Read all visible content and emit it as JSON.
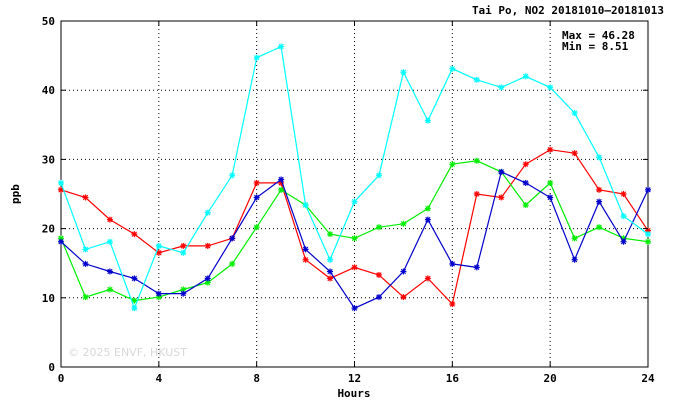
{
  "chart_data": {
    "type": "line",
    "title": "Tai Po, NO2 20181010—20181013",
    "xlabel": "Hours",
    "ylabel": "ppb",
    "xlim": [
      0,
      24
    ],
    "ylim": [
      0,
      50
    ],
    "xticks": [
      0,
      4,
      8,
      12,
      16,
      20,
      24
    ],
    "yticks": [
      0,
      10,
      20,
      30,
      40,
      50
    ],
    "grid": true,
    "marker": "asterisk",
    "stats": {
      "max_label": "Max = 46.28",
      "min_label": "Min =  8.51"
    },
    "watermark": "© 2025  ENVF, HKUST",
    "x": [
      0,
      1,
      2,
      3,
      4,
      5,
      6,
      7,
      8,
      9,
      10,
      11,
      12,
      13,
      14,
      15,
      16,
      17,
      18,
      19,
      20,
      21,
      22,
      23,
      24
    ],
    "series": [
      {
        "color": "#ff0000",
        "values": [
          25.6,
          24.5,
          21.3,
          19.2,
          16.5,
          17.5,
          17.5,
          18.6,
          26.6,
          26.6,
          15.5,
          12.8,
          14.4,
          13.3,
          10.1,
          12.8,
          9.1,
          25.0,
          24.5,
          29.3,
          31.4,
          30.9,
          25.6,
          25.0,
          19.7
        ]
      },
      {
        "color": "#00ee00",
        "values": [
          18.6,
          10.1,
          11.2,
          9.6,
          10.1,
          11.2,
          12.2,
          14.9,
          20.2,
          25.6,
          23.4,
          19.2,
          18.6,
          20.2,
          20.7,
          22.9,
          29.3,
          29.8,
          28.2,
          23.4,
          26.6,
          18.6,
          20.2,
          18.6,
          18.1
        ]
      },
      {
        "color": "#0000cc",
        "values": [
          18.1,
          14.9,
          13.8,
          12.8,
          10.6,
          10.6,
          12.8,
          18.6,
          24.5,
          27.1,
          17.0,
          13.8,
          8.5,
          10.1,
          13.8,
          21.3,
          14.9,
          14.4,
          28.2,
          26.6,
          24.5,
          15.5,
          23.9,
          18.1,
          25.6
        ]
      },
      {
        "color": "#00ffff",
        "values": [
          26.6,
          17.0,
          18.1,
          8.5,
          17.5,
          16.5,
          22.3,
          27.7,
          44.7,
          46.3,
          23.4,
          15.5,
          23.9,
          27.7,
          42.6,
          35.6,
          43.1,
          41.5,
          40.4,
          42.0,
          40.4,
          36.7,
          30.3,
          21.8,
          19.2
        ]
      }
    ]
  }
}
